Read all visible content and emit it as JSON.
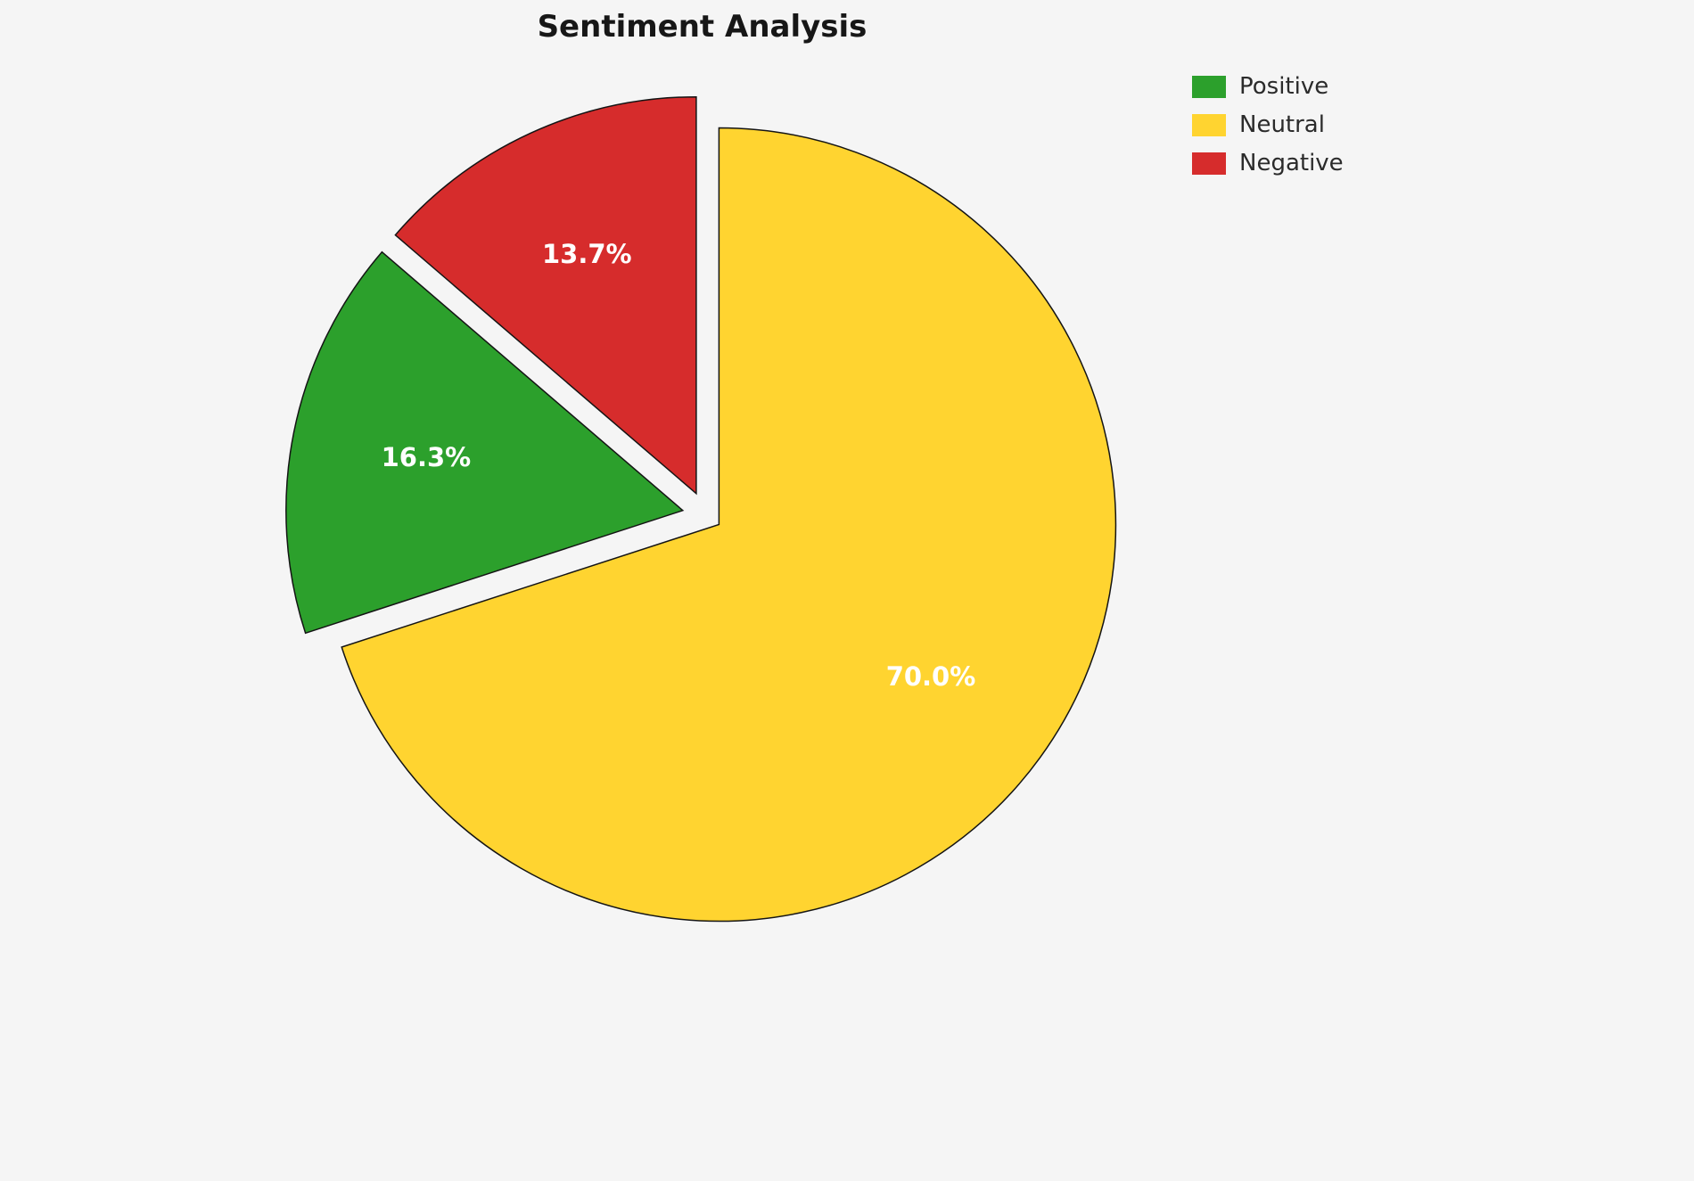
{
  "title": "Sentiment Analysis",
  "background_color": "#f5f5f5",
  "chart_data": {
    "type": "pie",
    "title": "Sentiment Analysis",
    "labels": [
      "Positive",
      "Neutral",
      "Negative"
    ],
    "values": [
      16.3,
      70.0,
      13.7
    ],
    "pct_labels": [
      "16.3%",
      "70.0%",
      "13.7%"
    ],
    "colors": [
      "#2ca02c",
      "#ffd430",
      "#d62c2c"
    ],
    "explode": [
      0.06,
      0.04,
      0.06
    ],
    "draw_order": [
      1,
      0,
      2
    ],
    "start_angle_deg": 0,
    "direction": "clockwise",
    "legend_position": "upper right",
    "legend_entries": [
      "Positive",
      "Neutral",
      "Negative"
    ],
    "slice_border_color": "#141414",
    "slice_label_color": "#ffffff",
    "grid": false
  }
}
